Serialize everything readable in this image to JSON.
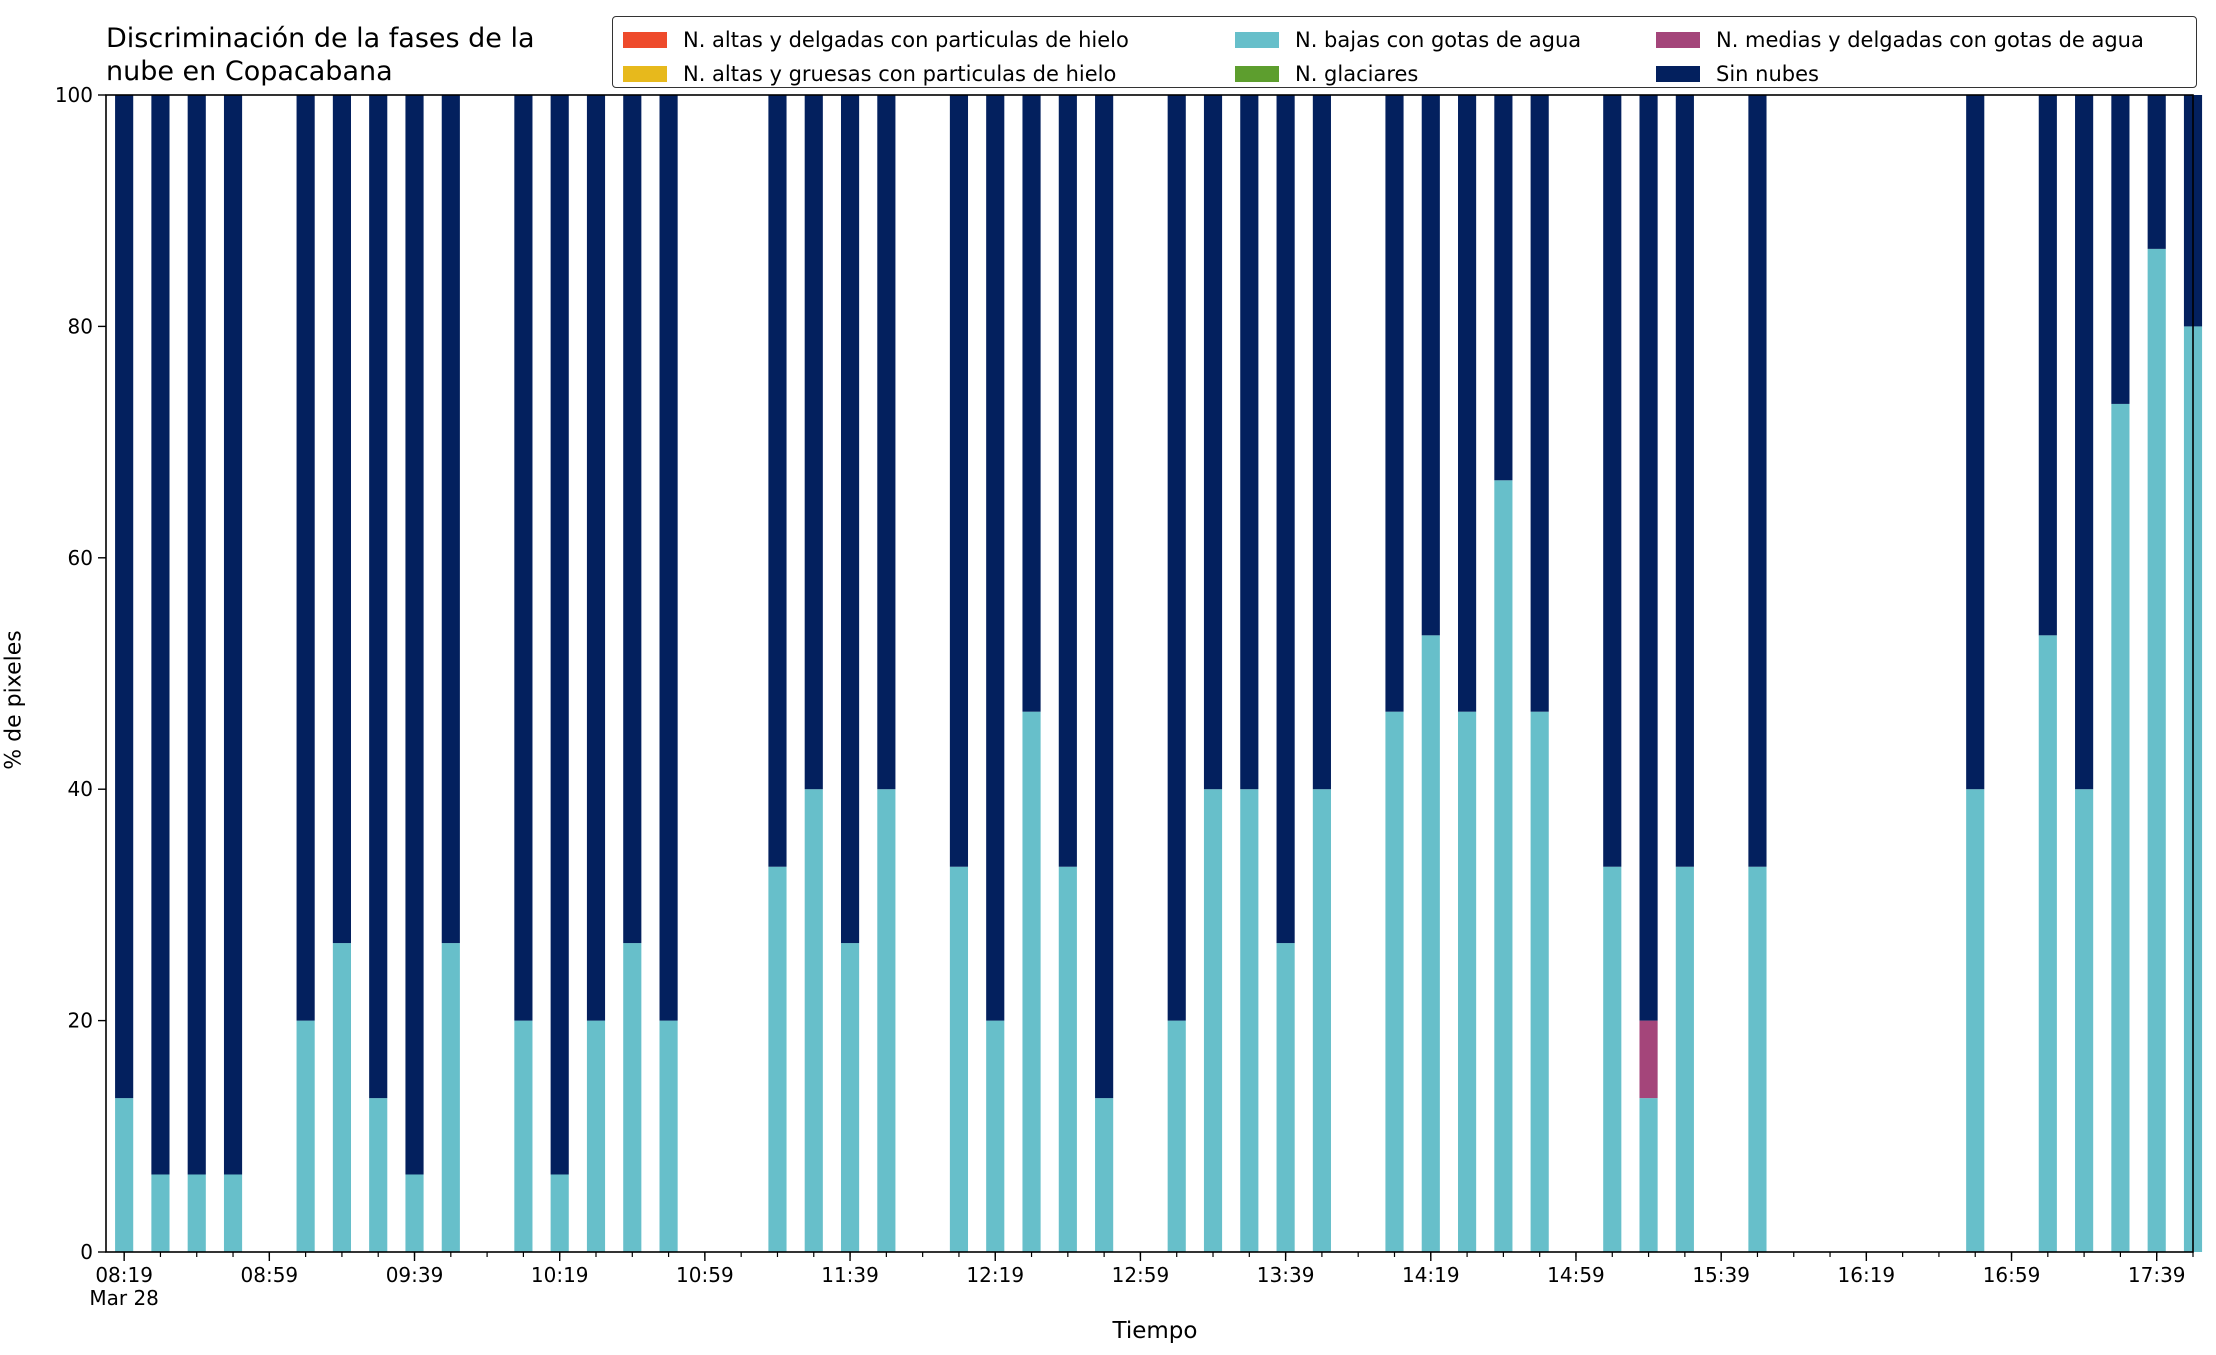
{
  "chart_data": {
    "type": "bar",
    "stacked": true,
    "title": "Discriminación de la fases de la\nnube en Copacabana",
    "xlabel": "Tiempo",
    "ylabel": "% de pixeles",
    "ylim": [
      0,
      100
    ],
    "yticks": [
      0,
      20,
      40,
      60,
      80,
      100
    ],
    "xlim": [
      "08:14",
      "17:49"
    ],
    "date_label": "Mar 28",
    "xticks_major": [
      "08:19",
      "08:59",
      "09:39",
      "10:19",
      "10:59",
      "11:39",
      "12:19",
      "12:59",
      "13:39",
      "14:19",
      "14:59",
      "15:39",
      "16:19",
      "16:59",
      "17:39"
    ],
    "xticks_minor_minutes": 10,
    "grid": false,
    "legend": "top-right",
    "x": [
      "08:19",
      "08:29",
      "08:39",
      "08:49",
      "09:09",
      "09:19",
      "09:29",
      "09:39",
      "09:49",
      "10:09",
      "10:19",
      "10:29",
      "10:39",
      "10:49",
      "11:19",
      "11:29",
      "11:39",
      "11:49",
      "12:09",
      "12:19",
      "12:29",
      "12:39",
      "12:49",
      "13:09",
      "13:19",
      "13:29",
      "13:39",
      "13:49",
      "14:09",
      "14:19",
      "14:29",
      "14:39",
      "14:49",
      "15:09",
      "15:19",
      "15:29",
      "15:49",
      "16:49",
      "17:09",
      "17:19",
      "17:29",
      "17:39",
      "17:49"
    ],
    "series": [
      {
        "name": "N. altas y delgadas con particulas de hielo",
        "color": "#ee4a2b",
        "values": [
          0,
          0,
          0,
          0,
          0,
          0,
          0,
          0,
          0,
          0,
          0,
          0,
          0,
          0,
          0,
          0,
          0,
          0,
          0,
          0,
          0,
          0,
          0,
          0,
          0,
          0,
          0,
          0,
          0,
          0,
          0,
          0,
          0,
          0,
          0,
          0,
          0,
          0,
          0,
          0,
          0,
          0,
          0
        ]
      },
      {
        "name": "N. altas y gruesas con particulas de hielo",
        "color": "#e7b91c",
        "values": [
          0,
          0,
          0,
          0,
          0,
          0,
          0,
          0,
          0,
          0,
          0,
          0,
          0,
          0,
          0,
          0,
          0,
          0,
          0,
          0,
          0,
          0,
          0,
          0,
          0,
          0,
          0,
          0,
          0,
          0,
          0,
          0,
          0,
          0,
          0,
          0,
          0,
          0,
          0,
          0,
          0,
          0,
          0
        ]
      },
      {
        "name": "N. bajas con gotas de agua",
        "color": "#67bfca",
        "values": [
          13.3,
          6.7,
          6.7,
          6.7,
          20,
          26.7,
          13.3,
          6.7,
          26.7,
          20,
          6.7,
          20,
          26.7,
          20,
          33.3,
          40,
          26.7,
          40,
          33.3,
          20,
          46.7,
          33.3,
          13.3,
          20,
          40,
          40,
          26.7,
          40,
          46.7,
          53.3,
          46.7,
          66.7,
          46.7,
          33.3,
          13.3,
          33.3,
          33.3,
          40,
          53.3,
          40,
          73.3,
          86.7,
          80
        ]
      },
      {
        "name": "N. glaciares",
        "color": "#5d9e2e",
        "values": [
          0,
          0,
          0,
          0,
          0,
          0,
          0,
          0,
          0,
          0,
          0,
          0,
          0,
          0,
          0,
          0,
          0,
          0,
          0,
          0,
          0,
          0,
          0,
          0,
          0,
          0,
          0,
          0,
          0,
          0,
          0,
          0,
          0,
          0,
          0,
          0,
          0,
          0,
          0,
          0,
          0,
          0,
          0
        ]
      },
      {
        "name": "N. medias y delgadas con gotas de agua",
        "color": "#a4457a",
        "values": [
          0,
          0,
          0,
          0,
          0,
          0,
          0,
          0,
          0,
          0,
          0,
          0,
          0,
          0,
          0,
          0,
          0,
          0,
          0,
          0,
          0,
          0,
          0,
          0,
          0,
          0,
          0,
          0,
          0,
          0,
          0,
          0,
          0,
          0,
          6.7,
          0,
          0,
          0,
          0,
          0,
          0,
          0,
          0
        ]
      },
      {
        "name": "Sin nubes",
        "color": "#03205e",
        "values": [
          86.7,
          93.3,
          93.3,
          93.3,
          80,
          73.3,
          86.7,
          93.3,
          73.3,
          80,
          93.3,
          80,
          73.3,
          80,
          66.7,
          60,
          73.3,
          60,
          66.7,
          80,
          53.3,
          66.7,
          86.7,
          80,
          60,
          60,
          73.3,
          60,
          53.3,
          46.7,
          53.3,
          33.3,
          53.3,
          66.7,
          80,
          66.7,
          66.7,
          60,
          46.7,
          60,
          26.7,
          13.3,
          20
        ]
      }
    ]
  }
}
